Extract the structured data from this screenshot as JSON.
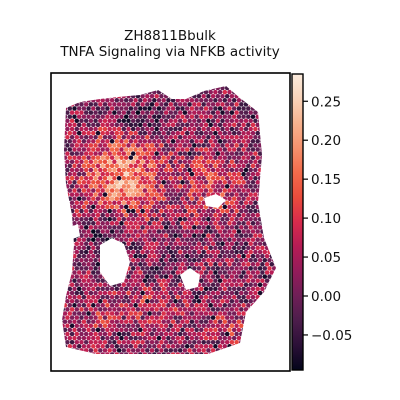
{
  "chart_data": {
    "type": "heatmap",
    "title": "ZH8811Bbulk",
    "subtitle": "TNFA Signaling via NFKB activity",
    "xlabel": "",
    "ylabel": "",
    "grid": false,
    "colormap": "rocket",
    "colorbar": {
      "ticks": [
        -0.05,
        0.0,
        0.05,
        0.1,
        0.15,
        0.2,
        0.25
      ],
      "tick_labels": [
        "−0.05",
        "0.00",
        "0.05",
        "0.10",
        "0.15",
        "0.20",
        "0.25"
      ],
      "vmin": -0.095,
      "vmax": 0.285
    },
    "colors": {
      "cmap_stops": [
        "#03051a",
        "#2b1037",
        "#4c1d4b",
        "#6f1f57",
        "#931c5a",
        "#b51c55",
        "#d72b4c",
        "#ea4c3c",
        "#f26b4b",
        "#f5916d",
        "#f6b28e",
        "#f8d3b9",
        "#faebdd"
      ]
    }
  }
}
